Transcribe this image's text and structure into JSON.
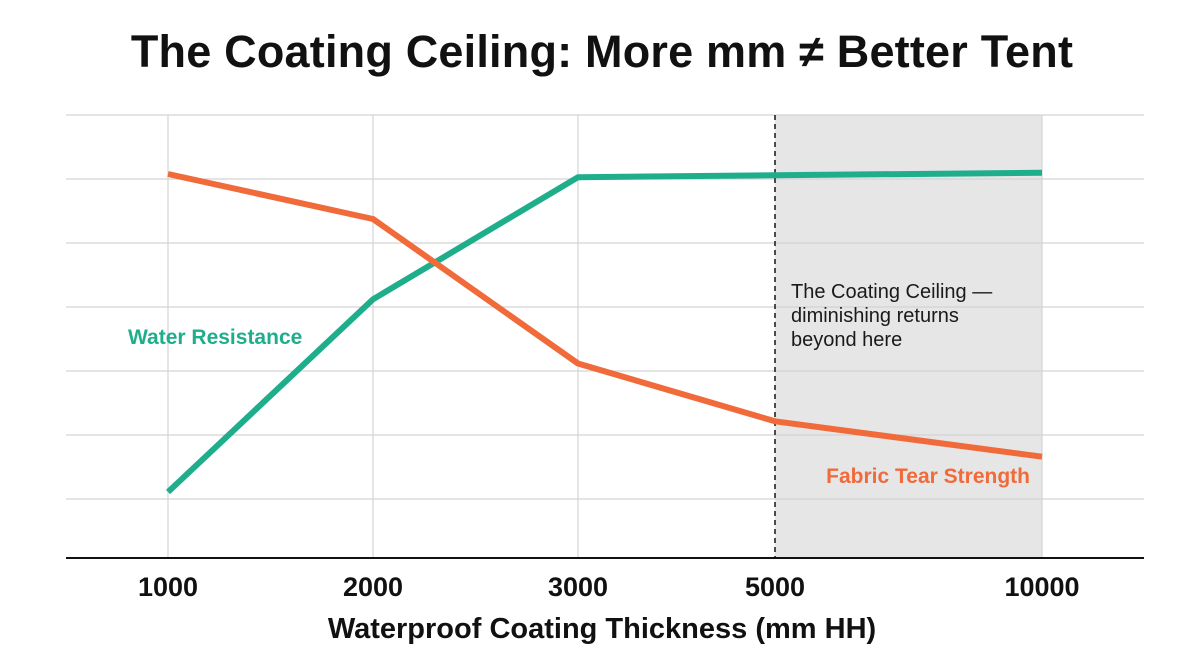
{
  "chart_data": {
    "type": "line",
    "title": "The Coating Ceiling: More mm ≠ Better Tent",
    "xlabel": "Waterproof Coating Thickness (mm HH)",
    "ylabel": "",
    "categories": [
      "1000",
      "2000",
      "3000",
      "5000",
      "10000"
    ],
    "ylim": [
      0,
      6
    ],
    "grid": true,
    "series": [
      {
        "name": "Water Resistance",
        "color": "#1fae8c",
        "values": [
          1.0,
          4.0,
          5.9,
          5.93,
          5.97
        ]
      },
      {
        "name": "Fabric Tear Strength",
        "color": "#f06a3a",
        "values": [
          5.95,
          5.25,
          3.0,
          2.1,
          1.55
        ]
      }
    ],
    "shaded_region": {
      "from": "5000",
      "to": "10000",
      "color": "#e6e6e6"
    },
    "annotation": {
      "lines": [
        "The Coating Ceiling —",
        "diminishing returns",
        "beyond here"
      ]
    }
  }
}
